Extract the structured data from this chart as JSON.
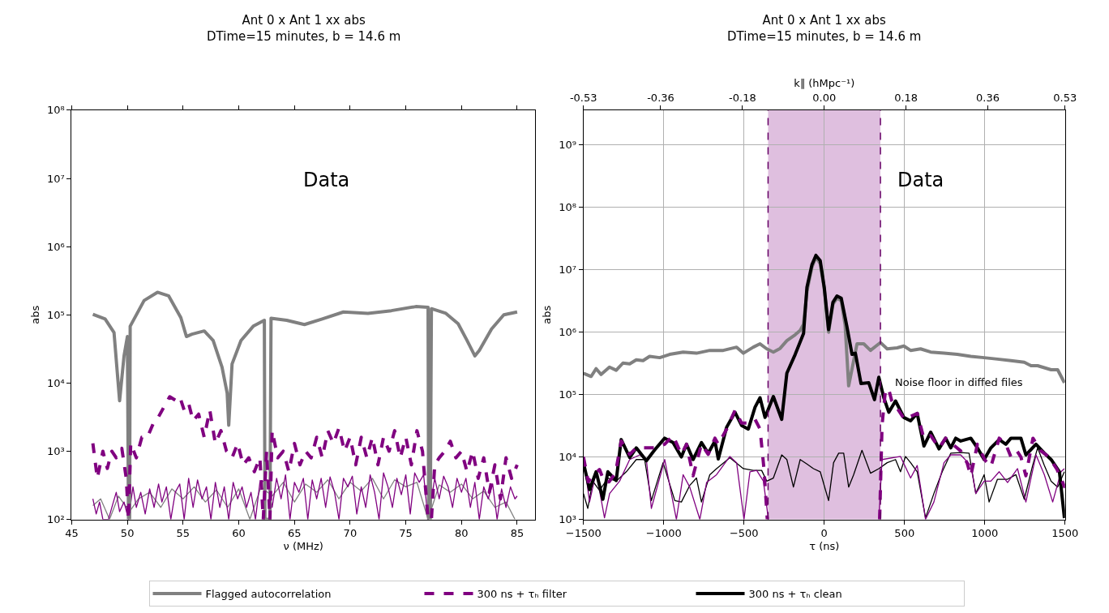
{
  "chart_data": [
    {
      "type": "line",
      "title": "Ant 0 x Ant 1 xx abs",
      "subtitle": "DTime=15 minutes, b = 14.6 m",
      "xlabel": "ν (MHz)",
      "ylabel": "abs",
      "log": "y",
      "grid": false,
      "legend": "bottom",
      "xlim": [
        45,
        86.6
      ],
      "xticks": [
        45,
        50,
        55,
        60,
        65,
        70,
        75,
        80,
        85
      ],
      "ylim": [
        100,
        100000000
      ],
      "yticks": [
        {
          "value": 100,
          "label": "10²"
        },
        {
          "value": 1000,
          "label": "10³"
        },
        {
          "value": 10000,
          "label": "10⁴"
        },
        {
          "value": 100000,
          "label": "10⁵"
        },
        {
          "value": 1000000,
          "label": "10⁶"
        },
        {
          "value": 10000000,
          "label": "10⁷"
        },
        {
          "value": 100000000,
          "label": "10⁸"
        }
      ],
      "annotations": [
        "Data"
      ],
      "series": [
        {
          "name": "Flagged autocorrelation",
          "color": "#808080",
          "line_style": "solid",
          "x": [
            46.9,
            48.0,
            48.8,
            49.3,
            49.7,
            50.0,
            50.1,
            50.2,
            50.25,
            51.5,
            52.7,
            53.7,
            54.8,
            55.3,
            55.8,
            56.9,
            57.7,
            58.5,
            58.96,
            59.1,
            59.4,
            60.2,
            61.3,
            62.3,
            62.35,
            62.8,
            62.9,
            64.3,
            65.9,
            67.5,
            69.4,
            71.6,
            73.7,
            75.9,
            77.0,
            77.05,
            77.2,
            77.3,
            78.6,
            79.7,
            80.5,
            81.2,
            81.6,
            82.7,
            83.8,
            85.0
          ],
          "values": [
            102000,
            87000,
            55000,
            5500,
            25000,
            48000,
            100,
            100,
            68000,
            162000,
            214000,
            190000,
            91000,
            48000,
            52000,
            58000,
            42000,
            17000,
            7100,
            2400,
            19000,
            42000,
            68000,
            83000,
            100,
            100,
            89000,
            83000,
            72000,
            87000,
            110000,
            105000,
            115000,
            132000,
            129000,
            100,
            100,
            123000,
            105000,
            74000,
            42000,
            25000,
            30000,
            62000,
            100000,
            110000
          ]
        },
        {
          "name": "300 ns + τₕ filter",
          "color": "#800080",
          "line_style": "dashed",
          "x": [
            46.9,
            47.3,
            47.8,
            48.2,
            48.6,
            49.0,
            49.5,
            49.9,
            50.1,
            50.3,
            50.8,
            51.3,
            51.8,
            52.3,
            52.8,
            53.3,
            53.8,
            54.3,
            54.7,
            55.1,
            55.5,
            55.9,
            56.4,
            56.9,
            57.4,
            57.9,
            58.4,
            58.9,
            59.4,
            59.9,
            60.4,
            60.9,
            61.4,
            61.9,
            62.2,
            62.5,
            62.8,
            63.0,
            63.5,
            64.0,
            64.5,
            65.0,
            65.5,
            66.0,
            66.5,
            67.0,
            67.5,
            68.0,
            68.5,
            69.0,
            69.5,
            70.0,
            70.5,
            71.0,
            71.5,
            72.0,
            72.5,
            73.0,
            73.5,
            74.0,
            74.5,
            75.0,
            75.5,
            76.0,
            76.5,
            77.0,
            77.3,
            77.6,
            78.0,
            78.5,
            79.0,
            79.5,
            80.0,
            80.5,
            81.0,
            81.5,
            82.0,
            82.5,
            83.0,
            83.5,
            84.0,
            84.5,
            85.0
          ],
          "values": [
            1300,
            400,
            1000,
            560,
            1000,
            800,
            1100,
            400,
            100,
            1300,
            800,
            1600,
            1600,
            2500,
            3200,
            4500,
            6300,
            5600,
            6300,
            4000,
            5000,
            2800,
            3500,
            1600,
            4000,
            1300,
            2000,
            1000,
            800,
            1300,
            630,
            800,
            500,
            800,
            100,
            1000,
            100,
            2000,
            800,
            1000,
            500,
            1300,
            630,
            1000,
            800,
            1600,
            800,
            2000,
            1300,
            2200,
            1000,
            1600,
            630,
            1600,
            800,
            1600,
            630,
            1600,
            1000,
            2000,
            800,
            1600,
            630,
            2000,
            1000,
            100,
            100,
            630,
            800,
            1000,
            1400,
            800,
            1000,
            500,
            1000,
            400,
            800,
            250,
            630,
            200,
            800,
            400,
            630
          ]
        },
        {
          "color": "#808080",
          "line_style": "solid",
          "x": [
            46.9,
            47.6,
            48.4,
            49.2,
            50.2,
            51.0,
            52.0,
            53.0,
            54.0,
            55.0,
            56.0,
            57.0,
            58.0,
            59.0,
            60.0,
            61.0,
            62.0,
            63.0,
            64.0,
            65.0,
            66.0,
            67.0,
            68.0,
            69.0,
            70.0,
            71.0,
            72.0,
            73.0,
            74.0,
            75.0,
            76.0,
            77.0,
            78.0,
            79.0,
            80.0,
            81.0,
            82.0,
            83.0,
            84.0,
            84.8
          ],
          "values": [
            160,
            200,
            100,
            220,
            130,
            200,
            250,
            150,
            280,
            200,
            300,
            180,
            270,
            150,
            280,
            100,
            300,
            220,
            350,
            180,
            330,
            250,
            380,
            200,
            350,
            260,
            400,
            200,
            380,
            300,
            350,
            100,
            320,
            250,
            330,
            200,
            260,
            150,
            180,
            100
          ]
        },
        {
          "color": "#800080",
          "line_style": "solid",
          "x": [
            46.9,
            47.2,
            47.5,
            47.8,
            48.3,
            48.7,
            49.0,
            49.3,
            49.7,
            50.1,
            50.5,
            50.8,
            51.2,
            51.6,
            52.0,
            52.4,
            52.8,
            53.1,
            53.5,
            53.9,
            54.3,
            54.7,
            55.1,
            55.5,
            55.9,
            56.3,
            56.7,
            57.1,
            57.5,
            57.9,
            58.3,
            58.7,
            59.1,
            59.5,
            59.9,
            60.3,
            60.7,
            61.1,
            61.5,
            61.9,
            62.6,
            63.0,
            63.4,
            63.8,
            64.2,
            64.6,
            65.0,
            65.4,
            65.8,
            66.2,
            66.6,
            67.0,
            67.4,
            67.8,
            68.2,
            68.6,
            69.0,
            69.4,
            69.8,
            70.2,
            70.6,
            71.0,
            71.4,
            71.8,
            72.2,
            72.6,
            73.0,
            73.4,
            73.8,
            74.2,
            74.6,
            75.0,
            75.4,
            75.8,
            76.2,
            76.6,
            77.0,
            77.6,
            78.0,
            78.4,
            78.8,
            79.2,
            79.6,
            80.0,
            80.4,
            80.8,
            81.2,
            81.6,
            82.0,
            82.4,
            82.8,
            83.2,
            83.6,
            84.0,
            84.4,
            84.8,
            85.0
          ],
          "values": [
            200,
            120,
            180,
            100,
            100,
            170,
            250,
            130,
            180,
            100,
            300,
            150,
            250,
            120,
            280,
            150,
            330,
            180,
            300,
            100,
            250,
            330,
            100,
            400,
            150,
            380,
            200,
            300,
            100,
            350,
            150,
            300,
            100,
            350,
            200,
            300,
            150,
            250,
            100,
            350,
            380,
            150,
            400,
            200,
            450,
            100,
            350,
            250,
            400,
            100,
            380,
            200,
            400,
            150,
            420,
            250,
            100,
            400,
            300,
            430,
            120,
            300,
            150,
            450,
            250,
            100,
            480,
            300,
            150,
            400,
            230,
            450,
            120,
            480,
            350,
            450,
            100,
            400,
            200,
            430,
            300,
            150,
            400,
            250,
            400,
            150,
            350,
            100,
            300,
            200,
            330,
            100,
            280,
            150,
            300,
            200,
            220
          ]
        }
      ]
    },
    {
      "type": "line",
      "title": "Ant 0 x Ant 1 xx abs",
      "subtitle": "DTime=15 minutes, b = 14.6 m",
      "xlabel": "τ (ns)",
      "ylabel": "abs",
      "x2label": "k∥ (hMpc⁻¹)",
      "log": "y",
      "grid": true,
      "legend": "bottom",
      "xlim": [
        -1500,
        1500
      ],
      "xticks": [
        {
          "value": -1500,
          "label": "−1500"
        },
        {
          "value": -1000,
          "label": "−1000"
        },
        {
          "value": -500,
          "label": "−500"
        },
        0,
        500,
        1000,
        1500
      ],
      "x2lim": [
        -0.53,
        0.53
      ],
      "x2ticks": [
        -0.53,
        -0.36,
        -0.18,
        {
          "value": 0,
          "label": "0.00"
        },
        0.18,
        0.36,
        0.53
      ],
      "ylim": [
        1000,
        3600000000
      ],
      "yticks": [
        {
          "value": 1000,
          "label": "10³"
        },
        {
          "value": 10000,
          "label": "10⁴"
        },
        {
          "value": 100000,
          "label": "10⁵"
        },
        {
          "value": 1000000,
          "label": "10⁶"
        },
        {
          "value": 10000000,
          "label": "10⁷"
        },
        {
          "value": 100000000,
          "label": "10⁸"
        },
        {
          "value": 1000000000,
          "label": "10⁹"
        }
      ],
      "bands": [
        {
          "axis": "x",
          "from": -350,
          "to": 350,
          "color": "#dfbfdf"
        }
      ],
      "ref_lines": [
        {
          "axis": "x",
          "value": -350,
          "color": "#660066",
          "line_style": "dashed"
        },
        {
          "axis": "x",
          "value": 350,
          "color": "#660066",
          "line_style": "dashed"
        }
      ],
      "annotations": [
        "Data",
        "Noise floor in diffed files"
      ],
      "series": [
        {
          "name": "Flagged autocorrelation",
          "color": "#808080",
          "line_style": "solid",
          "x": [
            -1500,
            -1452,
            -1421,
            -1390,
            -1338,
            -1296,
            -1254,
            -1212,
            -1171,
            -1129,
            -1088,
            -1025,
            -963,
            -879,
            -796,
            -713,
            -629,
            -546,
            -504,
            -442,
            -400,
            -358,
            -317,
            -275,
            -233,
            -181,
            -150,
            -129,
            -108,
            -77,
            -52,
            -25,
            0,
            27,
            54,
            79,
            106,
            130,
            152,
            204,
            246,
            288,
            350,
            392,
            454,
            496,
            538,
            600,
            663,
            746,
            829,
            913,
            996,
            1079,
            1163,
            1246,
            1288,
            1329,
            1413,
            1454,
            1496
          ],
          "values": [
            220000,
            195000,
            260000,
            210000,
            275000,
            245000,
            320000,
            310000,
            360000,
            350000,
            410000,
            390000,
            440000,
            480000,
            460000,
            510000,
            510000,
            575000,
            460000,
            575000,
            650000,
            540000,
            480000,
            550000,
            730000,
            910000,
            1070000,
            1350000,
            4500000,
            11000000,
            16000000,
            12500000,
            5000000,
            1000000,
            2800000,
            3500000,
            3200000,
            1300000,
            138000,
            650000,
            650000,
            510000,
            680000,
            540000,
            560000,
            600000,
            510000,
            540000,
            480000,
            460000,
            440000,
            410000,
            390000,
            370000,
            350000,
            330000,
            290000,
            290000,
            250000,
            250000,
            155000
          ]
        },
        {
          "name": "300 ns + τₕ clean",
          "color": "#000000",
          "line_style": "solid",
          "x": [
            -1500,
            -1462,
            -1421,
            -1379,
            -1348,
            -1296,
            -1265,
            -1212,
            -1171,
            -1108,
            -1056,
            -994,
            -942,
            -890,
            -858,
            -817,
            -765,
            -723,
            -681,
            -660,
            -608,
            -556,
            -515,
            -473,
            -431,
            -400,
            -369,
            -317,
            -265,
            -233,
            -181,
            -129,
            -108,
            -77,
            -52,
            -25,
            0,
            27,
            54,
            79,
            106,
            142,
            173,
            194,
            229,
            277,
            313,
            340,
            371,
            402,
            444,
            496,
            538,
            579,
            621,
            663,
            715,
            756,
            788,
            819,
            850,
            913,
            954,
            996,
            1038,
            1090,
            1131,
            1163,
            1225,
            1256,
            1319,
            1371,
            1413,
            1465,
            1496
          ],
          "values": [
            8100,
            3000,
            5800,
            2100,
            5800,
            4200,
            19000,
            9800,
            14000,
            8700,
            13000,
            20000,
            17000,
            10000,
            16000,
            9100,
            17000,
            11500,
            18000,
            9300,
            30000,
            52000,
            32000,
            28000,
            63000,
            89000,
            43000,
            93000,
            40000,
            220000,
            440000,
            950000,
            5200000,
            12000000,
            17000000,
            14000000,
            5200000,
            1100000,
            3000000,
            3800000,
            3500000,
            1200000,
            440000,
            460000,
            150000,
            155000,
            83000,
            190000,
            89000,
            52000,
            79000,
            43000,
            38000,
            50000,
            15000,
            25000,
            13500,
            20000,
            14000,
            20000,
            18000,
            20000,
            14000,
            9100,
            14000,
            19000,
            16000,
            20000,
            20000,
            10800,
            16000,
            11500,
            9100,
            5800,
            1050
          ]
        },
        {
          "name": "300 ns + τₕ filter",
          "color": "#800080",
          "line_style": "dashed",
          "x": [
            -1500,
            -1470,
            -1440,
            -1400,
            -1370,
            -1340,
            -1300,
            -1265,
            -1212,
            -1171,
            -1108,
            -1056,
            -994,
            -942,
            -890,
            -858,
            -817,
            -765,
            -723,
            -681,
            -660,
            -608,
            -556,
            -515,
            -473,
            -431,
            -400,
            -375,
            -355,
            0,
            345,
            360,
            380,
            400,
            420,
            450,
            500,
            540,
            580,
            620,
            663,
            715,
            756,
            800,
            850,
            890,
            913,
            954,
            1000,
            1038,
            1090,
            1131,
            1163,
            1200,
            1225,
            1256,
            1300,
            1350,
            1400,
            1450,
            1500
          ],
          "values": [
            10000,
            4000,
            5000,
            6300,
            4000,
            4000,
            5600,
            18000,
            11000,
            14000,
            14000,
            14000,
            16000,
            22000,
            11000,
            16000,
            5000,
            16000,
            11000,
            20000,
            16000,
            28000,
            56000,
            35000,
            35000,
            40000,
            28000,
            6300,
            1000,
            null,
            1000,
            32000,
            110000,
            126000,
            80000,
            63000,
            40000,
            45000,
            50000,
            20000,
            22000,
            14000,
            20000,
            16000,
            12500,
            8000,
            5000,
            16000,
            9000,
            7000,
            20000,
            16000,
            10000,
            12500,
            10000,
            5000,
            20000,
            12500,
            10000,
            6300,
            3200
          ]
        },
        {
          "color": "#000000",
          "line_style": "solid",
          "x": [
            -1500,
            -1473,
            -1442,
            -1400,
            -1348,
            -1296,
            -1233,
            -1171,
            -1119,
            -1077,
            -1004,
            -931,
            -890,
            -838,
            -796,
            -765,
            -713,
            -671,
            -588,
            -504,
            -442,
            -390,
            -358,
            -317,
            -265,
            -233,
            -192,
            -150,
            -108,
            -67,
            -25,
            27,
            58,
            90,
            121,
            152,
            183,
            235,
            288,
            340,
            392,
            444,
            475,
            506,
            538,
            579,
            631,
            683,
            735,
            788,
            850,
            902,
            944,
            996,
            1027,
            1079,
            1142,
            1194,
            1246,
            1298,
            1329,
            1371,
            1413,
            1454,
            1496
          ],
          "values": [
            2600,
            1500,
            4100,
            2900,
            4600,
            4100,
            5800,
            9100,
            9100,
            2000,
            8100,
            2000,
            1900,
            3500,
            4600,
            1900,
            5200,
            6500,
            9700,
            6500,
            6100,
            6100,
            4100,
            4600,
            10800,
            9100,
            3300,
            9100,
            7700,
            6500,
            5800,
            2000,
            8100,
            11500,
            11500,
            3300,
            5200,
            12800,
            5500,
            6500,
            8100,
            9100,
            5800,
            10200,
            8100,
            5800,
            1060,
            2600,
            5800,
            11500,
            11800,
            11500,
            2600,
            5200,
            1900,
            4400,
            4400,
            5200,
            2100,
            7300,
            14000,
            7300,
            4100,
            3300,
            5800
          ]
        },
        {
          "color": "#800080",
          "line_style": "solid",
          "x": [
            -1500,
            -1462,
            -1421,
            -1369,
            -1337,
            -1275,
            -1212,
            -1150,
            -1108,
            -1077,
            -994,
            -921,
            -879,
            -838,
            -775,
            -733,
            -671,
            -588,
            -546,
            -500,
            -463,
            -421,
            -379,
            -348,
            0,
            340,
            360,
            475,
            538,
            579,
            631,
            683,
            746,
            788,
            850,
            913,
            944,
            996,
            1038,
            1090,
            1142,
            1204,
            1256,
            1319,
            1371,
            1423,
            1475,
            1496
          ],
          "values": [
            10200,
            1900,
            5800,
            1060,
            2600,
            4100,
            9100,
            10800,
            9100,
            1500,
            9100,
            1000,
            5200,
            3300,
            1000,
            3900,
            5200,
            10200,
            8100,
            1000,
            5800,
            6100,
            4100,
            1000,
            null,
            1000,
            9100,
            10200,
            4600,
            7300,
            1000,
            1900,
            8100,
            10800,
            10800,
            7300,
            2600,
            4100,
            4100,
            5800,
            3900,
            6500,
            1900,
            10800,
            5200,
            1900,
            5800,
            6500
          ]
        }
      ]
    }
  ]
}
